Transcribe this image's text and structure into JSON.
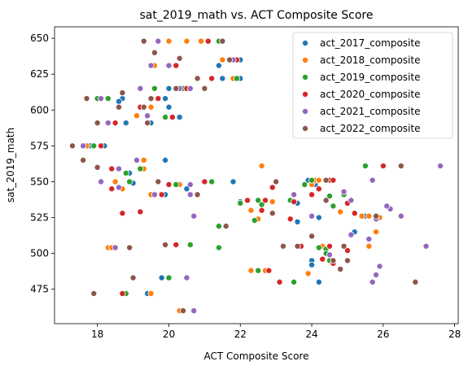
{
  "chart_data": {
    "type": "scatter",
    "title": "sat_2019_math vs. ACT Composite Score",
    "xlabel": "ACT Composite Score",
    "ylabel": "sat_2019_math",
    "xlim": [
      16.8,
      28.1
    ],
    "ylim": [
      451,
      658
    ],
    "xticks": [
      18,
      20,
      22,
      24,
      26,
      28
    ],
    "yticks": [
      475,
      500,
      525,
      550,
      575,
      600,
      625,
      650
    ],
    "grid": false,
    "legend_position": "top-right",
    "series": [
      {
        "name": "act_2017_composite",
        "color": "#1f77b4",
        "points": [
          [
            19.4,
            472
          ],
          [
            20.3,
            460
          ],
          [
            19.8,
            483
          ],
          [
            24.2,
            480
          ],
          [
            24.0,
            495
          ],
          [
            24.0,
            492
          ],
          [
            24.3,
            505
          ],
          [
            21.4,
            504
          ],
          [
            25.2,
            515
          ],
          [
            25.5,
            526
          ],
          [
            23.9,
            551
          ],
          [
            24.1,
            548
          ],
          [
            22.0,
            536
          ],
          [
            21.8,
            550
          ],
          [
            20.5,
            545
          ],
          [
            19.9,
            541
          ],
          [
            18.9,
            556
          ],
          [
            18.6,
            559
          ],
          [
            19.9,
            565
          ],
          [
            19.0,
            549
          ],
          [
            18.2,
            575
          ],
          [
            17.8,
            575
          ],
          [
            21.4,
            631
          ],
          [
            21.4,
            648
          ],
          [
            22.0,
            635
          ],
          [
            22.0,
            622
          ],
          [
            21.5,
            622
          ],
          [
            20.0,
            615
          ],
          [
            20.4,
            615
          ],
          [
            19.9,
            608
          ],
          [
            20.0,
            602
          ],
          [
            19.5,
            591
          ],
          [
            18.7,
            608
          ],
          [
            18.6,
            606
          ],
          [
            18.8,
            591
          ],
          [
            20.3,
            595
          ],
          [
            25.5,
            561
          ],
          [
            23.6,
            535
          ],
          [
            23.6,
            522
          ],
          [
            24.2,
            525
          ]
        ]
      },
      {
        "name": "act_2018_composite",
        "color": "#ff7f0e",
        "points": [
          [
            19.5,
            472
          ],
          [
            20.3,
            460
          ],
          [
            20.0,
            483
          ],
          [
            23.9,
            486
          ],
          [
            24.3,
            505
          ],
          [
            18.3,
            504
          ],
          [
            18.4,
            504
          ],
          [
            22.3,
            488
          ],
          [
            22.7,
            488
          ],
          [
            25.6,
            505
          ],
          [
            25.8,
            515
          ],
          [
            25.9,
            525
          ],
          [
            25.6,
            526
          ],
          [
            25.4,
            526
          ],
          [
            22.5,
            524
          ],
          [
            22.3,
            530
          ],
          [
            22.9,
            536
          ],
          [
            24.0,
            548
          ],
          [
            24.1,
            551
          ],
          [
            24.2,
            551
          ],
          [
            20.3,
            548
          ],
          [
            19.5,
            541
          ],
          [
            19.3,
            565
          ],
          [
            19.3,
            559
          ],
          [
            18.7,
            545
          ],
          [
            18.5,
            550
          ],
          [
            17.7,
            575
          ],
          [
            19.6,
            615
          ],
          [
            20.2,
            615
          ],
          [
            19.5,
            602
          ],
          [
            21.5,
            635
          ],
          [
            21.8,
            622
          ],
          [
            20.5,
            648
          ],
          [
            20.9,
            648
          ],
          [
            20.0,
            648
          ],
          [
            19.3,
            648
          ],
          [
            19.6,
            631
          ],
          [
            19.1,
            596
          ],
          [
            22.6,
            561
          ],
          [
            24.8,
            529
          ]
        ]
      },
      {
        "name": "act_2019_composite",
        "color": "#2ca02c",
        "points": [
          [
            18.8,
            472
          ],
          [
            20.0,
            483
          ],
          [
            20.6,
            506
          ],
          [
            21.4,
            504
          ],
          [
            22.5,
            488
          ],
          [
            23.5,
            480
          ],
          [
            24.5,
            495
          ],
          [
            24.2,
            504
          ],
          [
            24.4,
            503
          ],
          [
            24.6,
            495
          ],
          [
            24.4,
            500
          ],
          [
            22.4,
            523
          ],
          [
            22.5,
            537
          ],
          [
            22.6,
            534
          ],
          [
            21.4,
            519
          ],
          [
            24.5,
            540
          ],
          [
            24.6,
            533
          ],
          [
            24.9,
            541
          ],
          [
            25.5,
            561
          ],
          [
            24.0,
            551
          ],
          [
            23.8,
            548
          ],
          [
            21.2,
            550
          ],
          [
            20.2,
            548
          ],
          [
            19.2,
            559
          ],
          [
            18.9,
            550
          ],
          [
            18.8,
            556
          ],
          [
            17.9,
            575
          ],
          [
            18.0,
            608
          ],
          [
            18.3,
            608
          ],
          [
            19.3,
            602
          ],
          [
            19.9,
            595
          ],
          [
            20.4,
            615
          ],
          [
            21.2,
            622
          ],
          [
            21.4,
            648
          ],
          [
            21.7,
            635
          ],
          [
            21.9,
            622
          ],
          [
            20.2,
            631
          ],
          [
            19.6,
            615
          ],
          [
            22.0,
            535
          ],
          [
            23.4,
            537
          ]
        ]
      },
      {
        "name": "act_2020_composite",
        "color": "#d62728",
        "points": [
          [
            18.7,
            472
          ],
          [
            20.5,
            483
          ],
          [
            20.2,
            506
          ],
          [
            19.8,
            541
          ],
          [
            20.0,
            548
          ],
          [
            18.4,
            559
          ],
          [
            18.1,
            575
          ],
          [
            18.5,
            591
          ],
          [
            19.2,
            602
          ],
          [
            20.1,
            595
          ],
          [
            19.7,
            608
          ],
          [
            20.2,
            631
          ],
          [
            20.5,
            615
          ],
          [
            21.2,
            622
          ],
          [
            21.1,
            648
          ],
          [
            21.9,
            635
          ],
          [
            22.8,
            488
          ],
          [
            23.1,
            480
          ],
          [
            23.7,
            505
          ],
          [
            24.5,
            505
          ],
          [
            24.3,
            496
          ],
          [
            24.6,
            493
          ],
          [
            22.2,
            537
          ],
          [
            22.7,
            537
          ],
          [
            22.6,
            530
          ],
          [
            23.4,
            524
          ],
          [
            23.5,
            536
          ],
          [
            24.0,
            541
          ],
          [
            24.5,
            551
          ],
          [
            24.2,
            545
          ],
          [
            25.0,
            535
          ],
          [
            25.2,
            528
          ],
          [
            26.0,
            561
          ],
          [
            19.2,
            529
          ],
          [
            18.4,
            545
          ],
          [
            21.0,
            550
          ],
          [
            18.7,
            528
          ],
          [
            24.6,
            551
          ],
          [
            22.9,
            546
          ],
          [
            25.0,
            502
          ]
        ]
      },
      {
        "name": "act_2021_composite",
        "color": "#9467bd",
        "points": [
          [
            18.5,
            504
          ],
          [
            20.7,
            460
          ],
          [
            20.5,
            483
          ],
          [
            18.1,
            550
          ],
          [
            17.6,
            575
          ],
          [
            18.6,
            559
          ],
          [
            19.1,
            565
          ],
          [
            20.6,
            541
          ],
          [
            20.7,
            526
          ],
          [
            20.6,
            548
          ],
          [
            19.6,
            541
          ],
          [
            18.6,
            546
          ],
          [
            19.7,
            648
          ],
          [
            20.3,
            615
          ],
          [
            19.2,
            615
          ],
          [
            21.5,
            648
          ],
          [
            21.8,
            635
          ],
          [
            20.0,
            631
          ],
          [
            20.6,
            615
          ],
          [
            18.3,
            591
          ],
          [
            19.4,
            596
          ],
          [
            18.1,
            608
          ],
          [
            19.5,
            631
          ],
          [
            25.7,
            480
          ],
          [
            25.8,
            485
          ],
          [
            25.9,
            491
          ],
          [
            25.6,
            510
          ],
          [
            25.8,
            524
          ],
          [
            26.2,
            531
          ],
          [
            26.1,
            533
          ],
          [
            26.5,
            526
          ],
          [
            27.2,
            505
          ],
          [
            27.6,
            561
          ],
          [
            25.7,
            551
          ],
          [
            24.9,
            543
          ],
          [
            25.1,
            537
          ],
          [
            23.5,
            541
          ],
          [
            24.0,
            526
          ],
          [
            24.5,
            499
          ],
          [
            25.1,
            513
          ]
        ]
      },
      {
        "name": "act_2022_composite",
        "color": "#8c564b",
        "points": [
          [
            17.3,
            575
          ],
          [
            17.9,
            472
          ],
          [
            19.0,
            483
          ],
          [
            18.9,
            504
          ],
          [
            19.9,
            506
          ],
          [
            20.4,
            460
          ],
          [
            17.7,
            608
          ],
          [
            18.0,
            591
          ],
          [
            17.6,
            565
          ],
          [
            18.0,
            560
          ],
          [
            18.7,
            612
          ],
          [
            18.6,
            602
          ],
          [
            19.4,
            591
          ],
          [
            19.3,
            602
          ],
          [
            19.3,
            648
          ],
          [
            19.6,
            640
          ],
          [
            20.2,
            615
          ],
          [
            21.0,
            615
          ],
          [
            21.7,
            635
          ],
          [
            20.8,
            622
          ],
          [
            21.5,
            648
          ],
          [
            19.5,
            608
          ],
          [
            20.3,
            636
          ],
          [
            19.7,
            550
          ],
          [
            20.8,
            541
          ],
          [
            23.2,
            505
          ],
          [
            23.6,
            505
          ],
          [
            24.0,
            512
          ],
          [
            24.6,
            495
          ],
          [
            24.9,
            505
          ],
          [
            25.0,
            495
          ],
          [
            24.8,
            489
          ],
          [
            26.5,
            561
          ],
          [
            26.9,
            480
          ],
          [
            25.8,
            526
          ],
          [
            24.4,
            551
          ],
          [
            23.0,
            550
          ],
          [
            24.4,
            537
          ],
          [
            21.6,
            519
          ],
          [
            22.9,
            528
          ]
        ]
      }
    ]
  }
}
